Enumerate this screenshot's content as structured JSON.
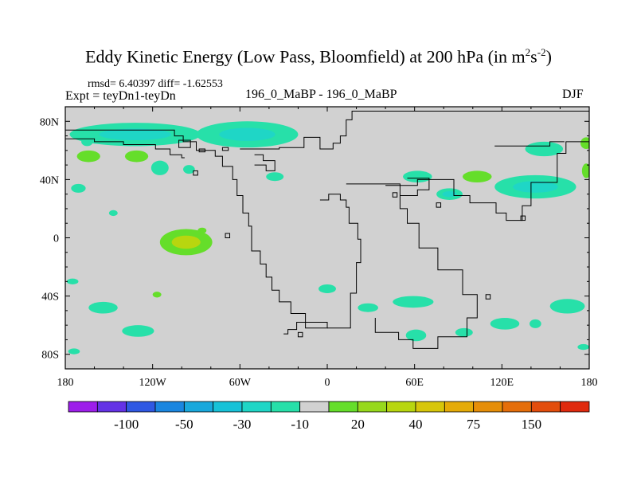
{
  "header": {
    "title_main": "Eddy Kinetic Energy (Low Pass, Bloomfield) at 200 hPa (in m",
    "title_sup1": "2",
    "title_mid": "s",
    "title_sup2": "-2",
    "title_end": ")",
    "stats": "rmsd= 6.40397 diff= -1.62553",
    "expt": "Expt = teyDn1-teyDn",
    "case": "196_0_MaBP - 196_0_MaBP",
    "season": "DJF"
  },
  "chart_data": {
    "type": "heatmap",
    "projection": "cylindrical-equidistant",
    "lon_range": [
      -180,
      180
    ],
    "lat_range": [
      -90,
      90
    ],
    "x_ticks": [
      {
        "value": -180,
        "label": "180"
      },
      {
        "value": -120,
        "label": "120W"
      },
      {
        "value": -60,
        "label": "60W"
      },
      {
        "value": 0,
        "label": "0"
      },
      {
        "value": 60,
        "label": "60E"
      },
      {
        "value": 120,
        "label": "120E"
      },
      {
        "value": 180,
        "label": "180"
      }
    ],
    "y_ticks": [
      {
        "value": 80,
        "label": "80N"
      },
      {
        "value": 40,
        "label": "40N"
      },
      {
        "value": 0,
        "label": "0"
      },
      {
        "value": -40,
        "label": "40S"
      },
      {
        "value": -80,
        "label": "80S"
      }
    ],
    "background_value_color": "#d1d1d1",
    "colorbar": {
      "colors": [
        "#9d1eea",
        "#6432e6",
        "#2f58e3",
        "#1a86e0",
        "#19a8dc",
        "#17c2d8",
        "#1fd6c6",
        "#27e0a9",
        "#d1d1d1",
        "#65de2a",
        "#97d91c",
        "#b8d60f",
        "#d7c60a",
        "#e5ab08",
        "#e68e08",
        "#e56e0a",
        "#e34d0c",
        "#e02a0e"
      ],
      "labels": [
        {
          "boundary": 2,
          "text": "-100"
        },
        {
          "boundary": 4,
          "text": "-50"
        },
        {
          "boundary": 6,
          "text": "-30"
        },
        {
          "boundary": 8,
          "text": "-10"
        },
        {
          "boundary": 10,
          "text": "20"
        },
        {
          "boundary": 12,
          "text": "40"
        },
        {
          "boundary": 14,
          "text": "75"
        },
        {
          "boundary": 16,
          "text": "150"
        }
      ]
    },
    "contour_blobs": [
      {
        "lon": -132,
        "lat": 71,
        "rlon": 45,
        "rlat": 8,
        "color": "#27e0a9",
        "core": "#1fd6c6"
      },
      {
        "lon": -55,
        "lat": 71,
        "rlon": 35,
        "rlat": 9,
        "color": "#27e0a9",
        "core": "#1fd6c6"
      },
      {
        "lon": -165,
        "lat": 66,
        "rlon": 4,
        "rlat": 3,
        "color": "#27e0a9"
      },
      {
        "lon": -164,
        "lat": 56,
        "rlon": 8,
        "rlat": 4,
        "color": "#65de2a"
      },
      {
        "lon": -131,
        "lat": 56,
        "rlon": 8,
        "rlat": 4,
        "color": "#65de2a"
      },
      {
        "lon": -171,
        "lat": 34,
        "rlon": 5,
        "rlat": 3,
        "color": "#27e0a9"
      },
      {
        "lon": -115,
        "lat": 48,
        "rlon": 6,
        "rlat": 5,
        "color": "#27e0a9"
      },
      {
        "lon": -95,
        "lat": 47,
        "rlon": 4,
        "rlat": 3,
        "color": "#27e0a9"
      },
      {
        "lon": -36,
        "lat": 42,
        "rlon": 6,
        "rlat": 3,
        "color": "#27e0a9"
      },
      {
        "lon": -147,
        "lat": 17,
        "rlon": 3,
        "rlat": 2,
        "color": "#27e0a9"
      },
      {
        "lon": 62,
        "lat": 42,
        "rlon": 10,
        "rlat": 4,
        "color": "#27e0a9"
      },
      {
        "lon": 84,
        "lat": 30,
        "rlon": 9,
        "rlat": 4,
        "color": "#27e0a9",
        "core": "#1fd6c6"
      },
      {
        "lon": 103,
        "lat": 42,
        "rlon": 10,
        "rlat": 4,
        "color": "#65de2a"
      },
      {
        "lon": 143,
        "lat": 35,
        "rlon": 28,
        "rlat": 8,
        "color": "#27e0a9",
        "core": "#1fd6c6"
      },
      {
        "lon": 149,
        "lat": 61,
        "rlon": 13,
        "rlat": 5,
        "color": "#27e0a9"
      },
      {
        "lon": 178,
        "lat": 65,
        "rlon": 4,
        "rlat": 4,
        "color": "#65de2a"
      },
      {
        "lon": 178,
        "lat": 46,
        "rlon": 3,
        "rlat": 5,
        "color": "#65de2a"
      },
      {
        "lon": -97,
        "lat": -3,
        "rlon": 18,
        "rlat": 9,
        "color": "#65de2a",
        "core": "#b8d60f"
      },
      {
        "lon": -86,
        "lat": 5,
        "rlon": 3,
        "rlat": 2,
        "color": "#65de2a"
      },
      {
        "lon": -175,
        "lat": -30,
        "rlon": 4,
        "rlat": 2,
        "color": "#27e0a9"
      },
      {
        "lon": -154,
        "lat": -48,
        "rlon": 10,
        "rlat": 4,
        "color": "#27e0a9"
      },
      {
        "lon": -117,
        "lat": -39,
        "rlon": 3,
        "rlat": 2,
        "color": "#65de2a"
      },
      {
        "lon": -130,
        "lat": -64,
        "rlon": 11,
        "rlat": 4,
        "color": "#27e0a9"
      },
      {
        "lon": -174,
        "lat": -78,
        "rlon": 4,
        "rlat": 2,
        "color": "#27e0a9"
      },
      {
        "lon": 0,
        "lat": -35,
        "rlon": 6,
        "rlat": 3,
        "color": "#27e0a9"
      },
      {
        "lon": 28,
        "lat": -48,
        "rlon": 7,
        "rlat": 3,
        "color": "#27e0a9"
      },
      {
        "lon": 59,
        "lat": -44,
        "rlon": 14,
        "rlat": 4,
        "color": "#27e0a9"
      },
      {
        "lon": 61,
        "lat": -67,
        "rlon": 7,
        "rlat": 4,
        "color": "#27e0a9"
      },
      {
        "lon": 94,
        "lat": -65,
        "rlon": 6,
        "rlat": 3,
        "color": "#27e0a9"
      },
      {
        "lon": 122,
        "lat": -59,
        "rlon": 10,
        "rlat": 4,
        "color": "#27e0a9"
      },
      {
        "lon": 143,
        "lat": -59,
        "rlon": 4,
        "rlat": 3,
        "color": "#27e0a9"
      },
      {
        "lon": 165,
        "lat": -47,
        "rlon": 12,
        "rlat": 5,
        "color": "#27e0a9"
      },
      {
        "lon": 176,
        "lat": -75,
        "rlon": 4,
        "rlat": 2,
        "color": "#27e0a9"
      }
    ],
    "continent_outlines": [
      {
        "name": "laurasia-west",
        "lonlat": [
          [
            -180,
            74
          ],
          [
            -105,
            74
          ],
          [
            -105,
            70
          ],
          [
            -99,
            70
          ],
          [
            -99,
            66
          ],
          [
            -90,
            66
          ],
          [
            -90,
            60
          ],
          [
            -77,
            60
          ],
          [
            -77,
            56
          ],
          [
            -72,
            56
          ],
          [
            -72,
            49
          ],
          [
            -65,
            49
          ],
          [
            -65,
            40
          ],
          [
            -62,
            40
          ],
          [
            -62,
            29
          ],
          [
            -58,
            29
          ],
          [
            -58,
            17
          ],
          [
            -54,
            17
          ],
          [
            -54,
            8
          ],
          [
            -52,
            8
          ],
          [
            -52,
            -9
          ],
          [
            -46,
            -9
          ],
          [
            -46,
            -18
          ],
          [
            -42,
            -18
          ],
          [
            -42,
            -27
          ],
          [
            -38,
            -27
          ],
          [
            -38,
            -36
          ],
          [
            -33,
            -36
          ],
          [
            -33,
            -44
          ],
          [
            -25,
            -44
          ],
          [
            -25,
            -52
          ],
          [
            -15,
            -52
          ],
          [
            -15,
            -58
          ],
          [
            0,
            -58
          ],
          [
            0,
            -62
          ],
          [
            -15,
            -62
          ],
          [
            -15,
            -58
          ],
          [
            -21,
            -58
          ],
          [
            -21,
            -63
          ],
          [
            -27,
            -63
          ],
          [
            -27,
            -66
          ],
          [
            -30,
            -66
          ]
        ]
      },
      {
        "name": "laurasia-north",
        "lonlat": [
          [
            -60,
            61
          ],
          [
            -33,
            61
          ],
          [
            -33,
            62
          ],
          [
            -16,
            62
          ],
          [
            -16,
            69
          ],
          [
            -5,
            69
          ],
          [
            -5,
            61
          ],
          [
            4,
            61
          ],
          [
            4,
            65
          ],
          [
            9,
            65
          ],
          [
            9,
            70
          ],
          [
            13,
            70
          ],
          [
            13,
            81
          ],
          [
            17,
            81
          ],
          [
            17,
            87
          ],
          [
            180,
            87
          ]
        ]
      },
      {
        "name": "gondwana-east",
        "lonlat": [
          [
            0,
            -62
          ],
          [
            16,
            -62
          ],
          [
            16,
            -38
          ],
          [
            20,
            -38
          ],
          [
            20,
            -17
          ],
          [
            23,
            -17
          ],
          [
            23,
            -1
          ],
          [
            21,
            -1
          ],
          [
            21,
            10
          ],
          [
            15,
            10
          ],
          [
            15,
            21
          ],
          [
            13,
            21
          ],
          [
            13,
            26
          ],
          [
            9,
            26
          ],
          [
            9,
            30
          ],
          [
            1,
            30
          ],
          [
            1,
            26
          ],
          [
            -5,
            26
          ]
        ]
      },
      {
        "name": "gondwana-interior",
        "lonlat": [
          [
            13,
            37
          ],
          [
            50,
            37
          ],
          [
            50,
            20
          ],
          [
            55,
            20
          ],
          [
            55,
            10
          ],
          [
            63,
            10
          ],
          [
            63,
            -7
          ],
          [
            76,
            -7
          ],
          [
            76,
            -22
          ],
          [
            93,
            -22
          ],
          [
            93,
            -39
          ],
          [
            103,
            -39
          ],
          [
            103,
            -55
          ],
          [
            96,
            -55
          ],
          [
            96,
            -68
          ],
          [
            76,
            -68
          ],
          [
            76,
            -76
          ],
          [
            59,
            -76
          ],
          [
            59,
            -70
          ],
          [
            49,
            -70
          ],
          [
            49,
            -65
          ],
          [
            33,
            -65
          ],
          [
            33,
            -55
          ]
        ]
      },
      {
        "name": "asia-east",
        "lonlat": [
          [
            40,
            36
          ],
          [
            62,
            36
          ],
          [
            62,
            40
          ],
          [
            87,
            40
          ],
          [
            87,
            29
          ],
          [
            98,
            29
          ],
          [
            98,
            24
          ],
          [
            116,
            24
          ],
          [
            116,
            17
          ],
          [
            123,
            17
          ],
          [
            123,
            12
          ],
          [
            134,
            12
          ],
          [
            134,
            22
          ],
          [
            140,
            22
          ],
          [
            140,
            38
          ],
          [
            158,
            38
          ],
          [
            158,
            58
          ],
          [
            164,
            58
          ],
          [
            164,
            66
          ],
          [
            180,
            66
          ]
        ]
      },
      {
        "name": "sea-inlet",
        "lonlat": [
          [
            55,
            41
          ],
          [
            70,
            41
          ],
          [
            70,
            33
          ],
          [
            62,
            33
          ],
          [
            62,
            29
          ],
          [
            50,
            29
          ]
        ]
      },
      {
        "name": "europe-west",
        "lonlat": [
          [
            -180,
            68
          ],
          [
            -160,
            68
          ],
          [
            -160,
            66
          ],
          [
            -140,
            66
          ],
          [
            -140,
            64
          ],
          [
            -118,
            64
          ],
          [
            -118,
            61
          ],
          [
            -108,
            61
          ],
          [
            -108,
            57
          ],
          [
            -100,
            57
          ],
          [
            -100,
            55
          ],
          [
            -98,
            55
          ]
        ]
      },
      {
        "name": "greenland",
        "lonlat": [
          [
            -50,
            57
          ],
          [
            -44,
            57
          ],
          [
            -44,
            53
          ],
          [
            -36,
            53
          ],
          [
            -36,
            46
          ],
          [
            -42,
            46
          ],
          [
            -42,
            50
          ],
          [
            -50,
            50
          ]
        ]
      },
      {
        "name": "arctic-east",
        "lonlat": [
          [
            115,
            63
          ],
          [
            153,
            63
          ],
          [
            153,
            66
          ],
          [
            163,
            66
          ]
        ]
      }
    ],
    "islands": [
      {
        "lon": -102,
        "lat": 67,
        "w": 8,
        "h": 5
      },
      {
        "lon": -88,
        "lat": 61,
        "w": 4,
        "h": 2
      },
      {
        "lon": -72,
        "lat": 62,
        "w": 4,
        "h": 2
      },
      {
        "lon": -92,
        "lat": 46,
        "w": 3,
        "h": 3
      },
      {
        "lon": -70,
        "lat": 3,
        "w": 3,
        "h": 3
      },
      {
        "lon": 45,
        "lat": 31,
        "w": 3,
        "h": 3
      },
      {
        "lon": 75,
        "lat": 24,
        "w": 3,
        "h": 3
      },
      {
        "lon": 133,
        "lat": 15,
        "w": 3,
        "h": 3
      },
      {
        "lon": 109,
        "lat": -39,
        "w": 3,
        "h": 3
      },
      {
        "lon": -20,
        "lat": -65,
        "w": 3,
        "h": 3
      }
    ]
  }
}
